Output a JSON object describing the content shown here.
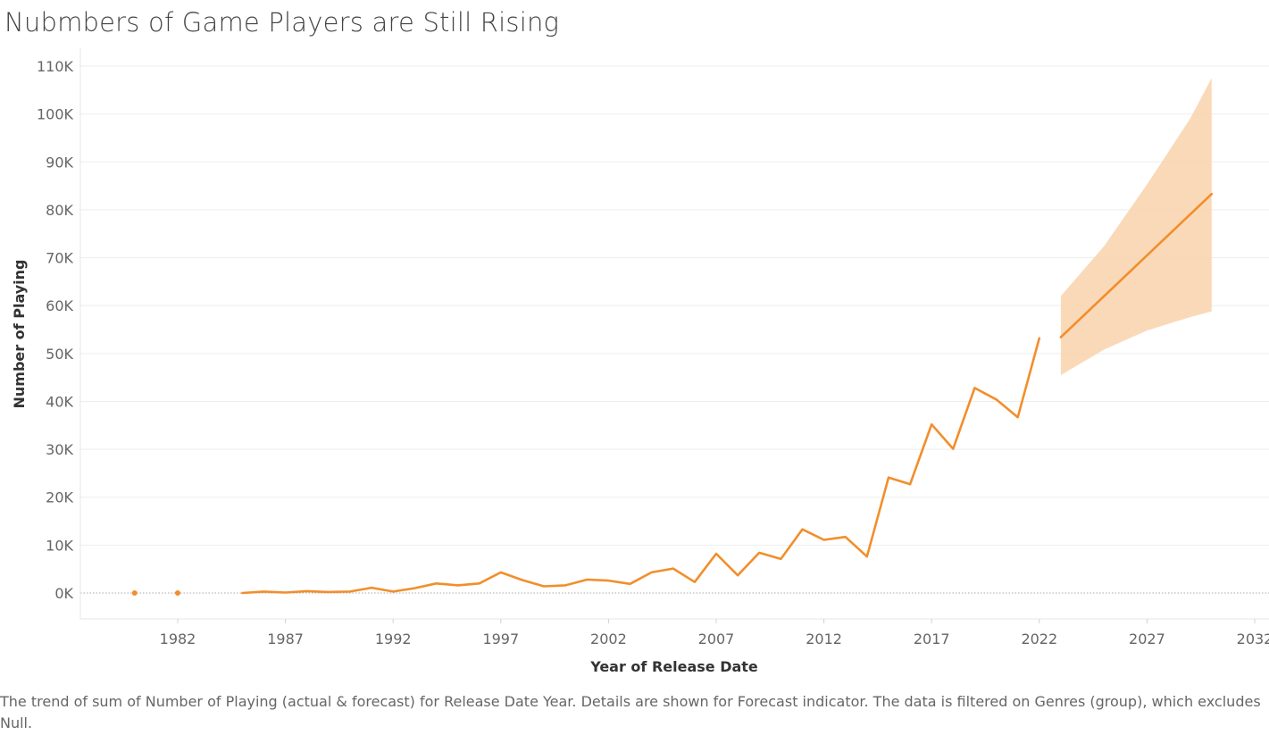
{
  "title": "Nubmbers of Game Players are Still Rising",
  "caption": "The trend of sum of Number of Playing (actual & forecast)  for Release Date Year.  Details are shown for Forecast indicator. The data is filtered on Genres  (group), which excludes Null.",
  "colors": {
    "line": "#f28e2b",
    "band": "#f9d2ad",
    "grid": "#eeeeee",
    "zero": "#aaaaaa"
  },
  "chart_data": {
    "type": "line",
    "xlabel": "Year of Release Date",
    "ylabel": "Number of Playing",
    "xlim": [
      1977,
      2032
    ],
    "ylim": [
      0,
      110000
    ],
    "x_ticks": [
      1982,
      1987,
      1992,
      1997,
      2002,
      2007,
      2012,
      2017,
      2022,
      2027,
      2032
    ],
    "x_tick_labels": [
      "1982",
      "1987",
      "1992",
      "1997",
      "2002",
      "2007",
      "2012",
      "2017",
      "2022",
      "2027",
      "2032"
    ],
    "y_ticks": [
      0,
      10000,
      20000,
      30000,
      40000,
      50000,
      60000,
      70000,
      80000,
      90000,
      100000,
      110000
    ],
    "y_tick_labels": [
      "0K",
      "10K",
      "20K",
      "30K",
      "40K",
      "50K",
      "60K",
      "70K",
      "80K",
      "90K",
      "100K",
      "110K"
    ],
    "grid": true,
    "series": [
      {
        "role": "isolated-points",
        "x": [
          1980,
          1982
        ],
        "y": [
          0,
          0
        ]
      },
      {
        "role": "actual",
        "x": [
          1985,
          1986,
          1987,
          1988,
          1989,
          1990,
          1991,
          1992,
          1993,
          1994,
          1995,
          1996,
          1997,
          1998,
          1999,
          2000,
          2001,
          2002,
          2003,
          2004,
          2005,
          2006,
          2007,
          2008,
          2009,
          2010,
          2011,
          2012,
          2013,
          2014,
          2015,
          2016,
          2017,
          2018,
          2019,
          2020,
          2021,
          2022
        ],
        "y": [
          0,
          300,
          100,
          400,
          200,
          300,
          1100,
          300,
          1000,
          2000,
          1600,
          2000,
          4300,
          2700,
          1400,
          1600,
          2800,
          2600,
          1900,
          4300,
          5100,
          2300,
          8200,
          3700,
          8400,
          7100,
          13300,
          11100,
          11700,
          7600,
          24100,
          22700,
          35200,
          30100,
          42800,
          40400,
          36700,
          53200
        ]
      },
      {
        "role": "forecast",
        "x": [
          2023,
          2030
        ],
        "y": [
          53400,
          83300
        ],
        "band_x": [
          2023,
          2025,
          2027,
          2029,
          2030
        ],
        "band_lower": [
          45500,
          50800,
          54800,
          57600,
          58800
        ],
        "band_upper": [
          62000,
          72400,
          85300,
          99000,
          107500
        ]
      }
    ]
  }
}
